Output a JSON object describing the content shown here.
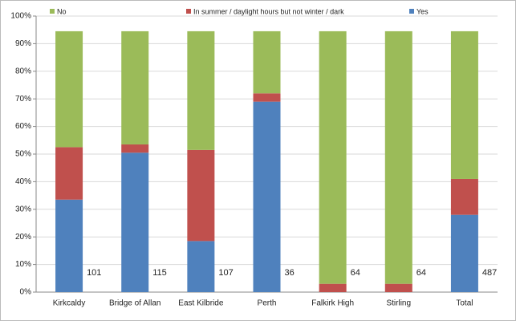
{
  "chart_data": {
    "type": "stacked_bar",
    "categories": [
      "Kirkcaldy",
      "Bridge of Allan",
      "East Kilbride",
      "Perth",
      "Falkirk High",
      "Stirling",
      "Total"
    ],
    "series": [
      {
        "name": "Yes",
        "color": "#4f81bd",
        "values": [
          33.5,
          50.5,
          18.5,
          69,
          0,
          0,
          28
        ]
      },
      {
        "name": "In summer / daylight hours but not winter / dark",
        "color": "#c0504d",
        "values": [
          19,
          3,
          33,
          3,
          3,
          3,
          13
        ]
      },
      {
        "name": "No",
        "color": "#9bbb59",
        "values": [
          42,
          41,
          43,
          22.5,
          91.5,
          91.5,
          53.5
        ]
      }
    ],
    "sample_sizes": [
      101,
      115,
      107,
      36,
      64,
      64,
      487
    ],
    "ylim": [
      0,
      100
    ],
    "yticks": [
      {
        "value": 0,
        "label": "0%"
      },
      {
        "value": 10,
        "label": "10%"
      },
      {
        "value": 20,
        "label": "20%"
      },
      {
        "value": 30,
        "label": "30%"
      },
      {
        "value": 40,
        "label": "40%"
      },
      {
        "value": 50,
        "label": "50%"
      },
      {
        "value": 60,
        "label": "60%"
      },
      {
        "value": 70,
        "label": "70%"
      },
      {
        "value": 80,
        "label": "80%"
      },
      {
        "value": 90,
        "label": "90%"
      },
      {
        "value": 100,
        "label": "100%"
      }
    ],
    "grid": true,
    "legend": "top"
  }
}
